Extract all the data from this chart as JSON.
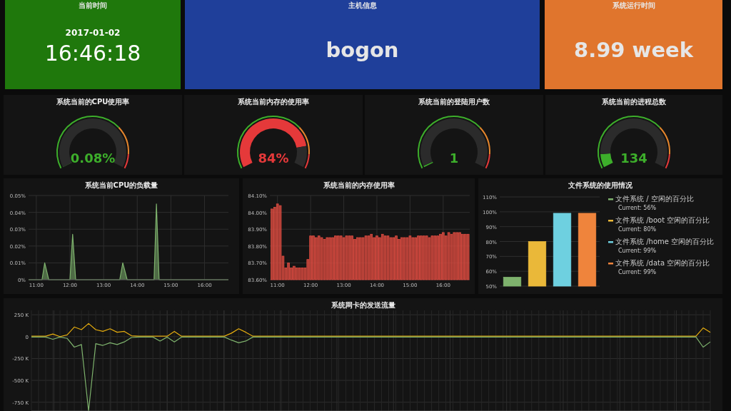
{
  "chart_data": [
    {
      "type": "other",
      "title": "当前时间",
      "annotations": [
        "2017-01-02",
        "16:46:18"
      ],
      "color": "#1f780c"
    },
    {
      "type": "other",
      "title": "主机信息",
      "annotations": [
        "bogon"
      ],
      "color": "#1f3f9a"
    },
    {
      "type": "other",
      "title": "系统运行时间",
      "annotations": [
        "8.99 week"
      ],
      "color": "#e0752d"
    },
    {
      "type": "donut",
      "title": "系统当前的CPU使用率",
      "categories": [
        null,
        null
      ],
      "values": [
        0.08,
        99.92
      ],
      "colors": [
        "#3dae2b",
        "#2b2b2b"
      ],
      "annotations": [
        "0.08%"
      ]
    },
    {
      "type": "donut",
      "title": "系统当前内存的使用率",
      "categories": [
        null,
        null
      ],
      "values": [
        84,
        16
      ],
      "colors": [
        "#e5393a",
        "#2b2b2b"
      ],
      "annotations": [
        "84%"
      ]
    },
    {
      "type": "donut",
      "title": "系统当前的登陆用户数",
      "categories": [
        null,
        null
      ],
      "values": [
        1,
        99
      ],
      "colors": [
        "#3dae2b",
        "#2b2b2b"
      ],
      "annotations": [
        "1"
      ]
    },
    {
      "type": "donut",
      "title": "系统当前的进程总数",
      "categories": [
        null,
        null
      ],
      "values": [
        10,
        90
      ],
      "colors": [
        "#3dae2b",
        "#2b2b2b"
      ],
      "annotations": [
        "134"
      ]
    },
    {
      "type": "area",
      "title": "系统当前CPU的负载量",
      "grid": true,
      "x": [
        10.77,
        11.17,
        11.25,
        11.37,
        12.0,
        12.08,
        12.17,
        13.48,
        13.57,
        13.7,
        14.5,
        14.57,
        14.65,
        16.71
      ],
      "series": [
        {
          "color": "#7eb26d",
          "values": [
            0,
            0,
            0.01,
            0,
            0,
            0.027,
            0,
            0,
            0.01,
            0,
            0,
            0.045,
            0,
            0
          ]
        }
      ],
      "xlim": [
        10.77,
        16.71
      ],
      "ylim": [
        0,
        0.05
      ],
      "xticks": [
        {
          "value": 11,
          "label": "11:00"
        },
        {
          "value": 12,
          "label": "12:00"
        },
        {
          "value": 13,
          "label": "13:00"
        },
        {
          "value": 14,
          "label": "14:00"
        },
        {
          "value": 15,
          "label": "15:00"
        },
        {
          "value": 16,
          "label": "16:00"
        }
      ],
      "yticks": [
        {
          "value": 0,
          "label": "0%"
        },
        {
          "value": 0.01,
          "label": "0.01%"
        },
        {
          "value": 0.02,
          "label": "0.02%"
        },
        {
          "value": 0.03,
          "label": "0.03%"
        },
        {
          "value": 0.04,
          "label": "0.04%"
        },
        {
          "value": 0.05,
          "label": "0.05%"
        }
      ]
    },
    {
      "type": "bar",
      "title": "系统当前的内存使用率",
      "grid": true,
      "x": [
        10.833,
        10.917,
        11,
        11.083,
        11.167,
        11.25,
        11.333,
        11.417,
        11.5,
        11.583,
        11.667,
        11.75,
        11.833,
        11.917,
        12,
        12.083,
        12.167,
        12.25,
        12.333,
        12.417,
        12.5,
        12.583,
        12.667,
        12.75,
        12.833,
        12.917,
        13,
        13.083,
        13.167,
        13.25,
        13.333,
        13.417,
        13.5,
        13.583,
        13.667,
        13.75,
        13.833,
        13.917,
        14,
        14.083,
        14.167,
        14.25,
        14.333,
        14.417,
        14.5,
        14.583,
        14.667,
        14.75,
        14.833,
        14.917,
        15,
        15.083,
        15.167,
        15.25,
        15.333,
        15.417,
        15.5,
        15.583,
        15.667,
        15.75,
        15.833,
        15.917,
        16,
        16.083,
        16.167,
        16.25,
        16.333,
        16.417,
        16.5,
        16.583,
        16.667,
        16.75
      ],
      "series": [
        {
          "color": "#e24d42",
          "values": [
            84.02,
            84.03,
            84.05,
            84.04,
            83.74,
            83.67,
            83.7,
            83.67,
            83.68,
            83.67,
            83.67,
            83.67,
            83.67,
            83.72,
            83.86,
            83.86,
            83.85,
            83.86,
            83.85,
            83.84,
            83.85,
            83.85,
            83.85,
            83.86,
            83.86,
            83.86,
            83.85,
            83.86,
            83.86,
            83.86,
            83.84,
            83.85,
            83.85,
            83.85,
            83.86,
            83.86,
            83.87,
            83.85,
            83.86,
            83.85,
            83.87,
            83.86,
            83.86,
            83.85,
            83.85,
            83.86,
            83.84,
            83.85,
            83.85,
            83.85,
            83.86,
            83.85,
            83.85,
            83.86,
            83.86,
            83.86,
            83.86,
            83.85,
            83.86,
            83.86,
            83.86,
            83.87,
            83.88,
            83.86,
            83.88,
            83.87,
            83.88,
            83.88,
            83.88,
            83.87,
            83.87,
            83.87
          ]
        }
      ],
      "xlim": [
        10.77,
        16.8
      ],
      "ylim": [
        83.6,
        84.1
      ],
      "xticks": [
        {
          "value": 11,
          "label": "11:00"
        },
        {
          "value": 12,
          "label": "12:00"
        },
        {
          "value": 13,
          "label": "13:00"
        },
        {
          "value": 14,
          "label": "14:00"
        },
        {
          "value": 15,
          "label": "15:00"
        },
        {
          "value": 16,
          "label": "16:00"
        }
      ],
      "yticks": [
        {
          "value": 83.6,
          "label": "83.60%"
        },
        {
          "value": 83.7,
          "label": "83.70%"
        },
        {
          "value": 83.8,
          "label": "83.80%"
        },
        {
          "value": 83.9,
          "label": "83.90%"
        },
        {
          "value": 84.0,
          "label": "84.00%"
        },
        {
          "value": 84.1,
          "label": "84.10%"
        }
      ]
    },
    {
      "type": "bar",
      "title": "文件系统的使用情况",
      "grid": "y",
      "legend": "right",
      "categories": [
        null,
        null,
        null,
        null
      ],
      "series": [
        {
          "name": "文件系统 / 空闲的百分比",
          "color": "#7eb26d",
          "values": [
            56,
            null,
            null,
            null
          ]
        },
        {
          "name": "文件系统 /boot 空闲的百分比",
          "color": "#eab839",
          "values": [
            null,
            80,
            null,
            null
          ]
        },
        {
          "name": "文件系统 /home 空闲的百分比",
          "color": "#6ed0e0",
          "values": [
            null,
            null,
            99,
            null
          ]
        },
        {
          "name": "文件系统 /data 空闲的百分比",
          "color": "#ef843c",
          "values": [
            null,
            null,
            null,
            99
          ]
        }
      ],
      "annotations": [
        "Current: 56%",
        "Current: 80%",
        "Current: 99%",
        "Current: 99%"
      ],
      "ylim": [
        50,
        110
      ],
      "yticks": [
        {
          "value": 50,
          "label": "50%"
        },
        {
          "value": 60,
          "label": "60%"
        },
        {
          "value": 70,
          "label": "70%"
        },
        {
          "value": 80,
          "label": "80%"
        },
        {
          "value": 90,
          "label": "90%"
        },
        {
          "value": 100,
          "label": "100%"
        },
        {
          "value": 110,
          "label": "110%"
        }
      ]
    },
    {
      "type": "line",
      "title": "系统网卡的发送流量",
      "grid": true,
      "categories": [
        null,
        null,
        null,
        null,
        null,
        null,
        null,
        null,
        null,
        null,
        null,
        null,
        null,
        null,
        null,
        null,
        null,
        null,
        null,
        null,
        null,
        null,
        null,
        null,
        null,
        null,
        null,
        null,
        null,
        null,
        null,
        null,
        null,
        null,
        null,
        null,
        null,
        null,
        null,
        null,
        null,
        null,
        null,
        null,
        null,
        null,
        null,
        null,
        null,
        null,
        null,
        null,
        null,
        null,
        null,
        null,
        null,
        null,
        null,
        null,
        null,
        null,
        null,
        null,
        null,
        null,
        null,
        null,
        null,
        null,
        null,
        null,
        null,
        null,
        null,
        null,
        null,
        null,
        null,
        null,
        null,
        null,
        null,
        null,
        null,
        null,
        null,
        null,
        null,
        null,
        null,
        null,
        null,
        null,
        null,
        null
      ],
      "series": [
        {
          "color": "#e5ac0e",
          "values": [
            5,
            5,
            5,
            30,
            0,
            20,
            110,
            80,
            150,
            80,
            60,
            90,
            50,
            60,
            10,
            5,
            5,
            5,
            5,
            5,
            60,
            5,
            5,
            5,
            5,
            5,
            5,
            5,
            40,
            90,
            50,
            5,
            5,
            5,
            5,
            5,
            5,
            5,
            5,
            5,
            5,
            5,
            5,
            5,
            5,
            5,
            5,
            5,
            5,
            5,
            5,
            5,
            5,
            5,
            5,
            5,
            5,
            5,
            5,
            5,
            5,
            5,
            5,
            5,
            5,
            5,
            5,
            5,
            5,
            5,
            5,
            5,
            5,
            5,
            5,
            5,
            5,
            5,
            5,
            5,
            5,
            5,
            5,
            5,
            5,
            5,
            5,
            5,
            5,
            5,
            5,
            5,
            5,
            5,
            100,
            50
          ]
        },
        {
          "color": "#7eb26d",
          "values": [
            -5,
            -5,
            -5,
            -30,
            -5,
            -20,
            -120,
            -90,
            -850,
            -80,
            -100,
            -70,
            -90,
            -60,
            -10,
            -5,
            -5,
            -5,
            -50,
            -5,
            -60,
            -5,
            -5,
            -5,
            -5,
            -5,
            -5,
            -5,
            -40,
            -70,
            -50,
            -5,
            -5,
            -5,
            -5,
            -5,
            -5,
            -5,
            -5,
            -5,
            -5,
            -5,
            -5,
            -5,
            -5,
            -5,
            -5,
            -5,
            -5,
            -5,
            -5,
            -5,
            -5,
            -5,
            -5,
            -5,
            -5,
            -5,
            -5,
            -5,
            -5,
            -5,
            -5,
            -5,
            -5,
            -5,
            -5,
            -5,
            -5,
            -5,
            -5,
            -5,
            -5,
            -5,
            -5,
            -5,
            -5,
            -5,
            -5,
            -5,
            -5,
            -5,
            -5,
            -5,
            -5,
            -5,
            -5,
            -5,
            -5,
            -5,
            -5,
            -5,
            -5,
            -5,
            -120,
            -60
          ]
        }
      ],
      "ylim": [
        -850,
        300
      ],
      "yticks": [
        {
          "value": 250,
          "label": "250 K"
        },
        0,
        {
          "value": -250,
          "label": "-250 K"
        },
        {
          "value": -500,
          "label": "-500 K"
        },
        {
          "value": -750,
          "label": "-750 K"
        }
      ]
    }
  ]
}
